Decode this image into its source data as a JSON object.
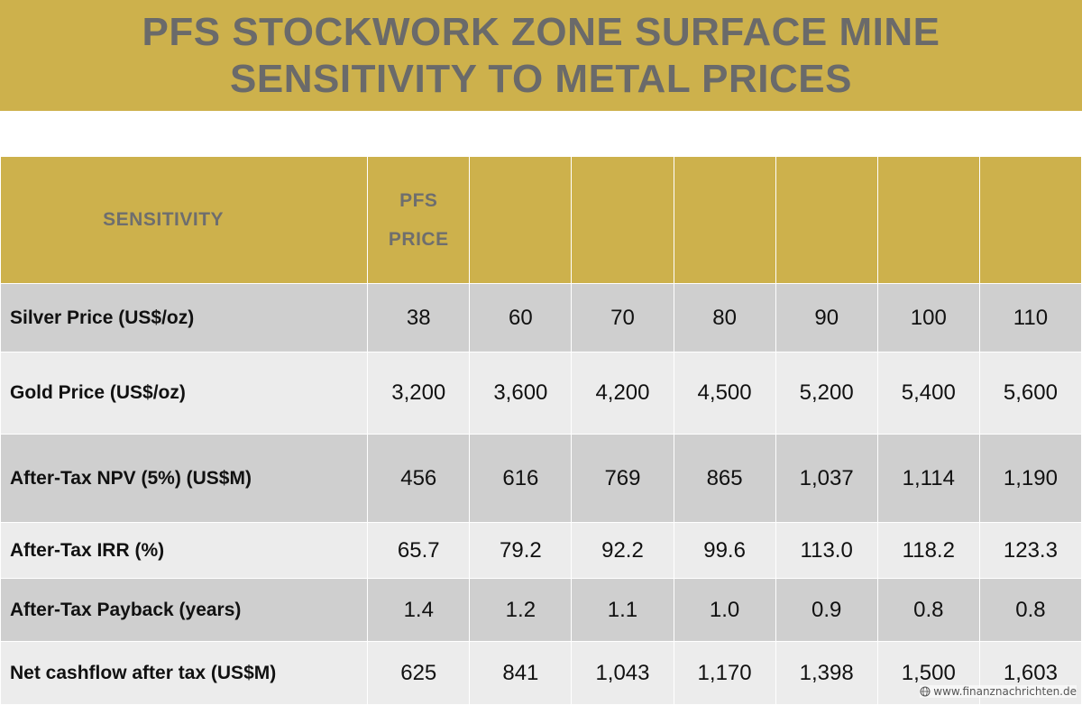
{
  "title": {
    "line1": "PFS STOCKWORK ZONE SURFACE MINE",
    "line2": "SENSITIVITY TO METAL PRICES"
  },
  "table": {
    "header": {
      "label": "SENSITIVITY",
      "pfs_line1": "PFS",
      "pfs_line2": "PRICE"
    },
    "rows": [
      {
        "label": "Silver Price (US$/oz)",
        "values": [
          "38",
          "60",
          "70",
          "80",
          "90",
          "100",
          "110"
        ]
      },
      {
        "label": "Gold Price (US$/oz)",
        "values": [
          "3,200",
          "3,600",
          "4,200",
          "4,500",
          "5,200",
          "5,400",
          "5,600"
        ]
      },
      {
        "label": "After-Tax NPV (5%) (US$M)",
        "values": [
          "456",
          "616",
          "769",
          "865",
          "1,037",
          "1,114",
          "1,190"
        ]
      },
      {
        "label": "After-Tax IRR (%)",
        "values": [
          "65.7",
          "79.2",
          "92.2",
          "99.6",
          "113.0",
          "118.2",
          "123.3"
        ]
      },
      {
        "label": "After-Tax Payback (years)",
        "values": [
          "1.4",
          "1.2",
          "1.1",
          "1.0",
          "0.9",
          "0.8",
          "0.8"
        ]
      },
      {
        "label": "Net cashflow after tax (US$M)",
        "values": [
          "625",
          "841",
          "1,043",
          "1,170",
          "1,398",
          "1,500",
          "1,603"
        ]
      }
    ]
  },
  "watermark": {
    "icon": "globe-icon",
    "text": "www.finanznachrichten.de"
  },
  "colors": {
    "band": "#cdb14c",
    "title_text": "#6a6a6a",
    "row_dark": "#cfcfcf",
    "row_light": "#ececec"
  }
}
